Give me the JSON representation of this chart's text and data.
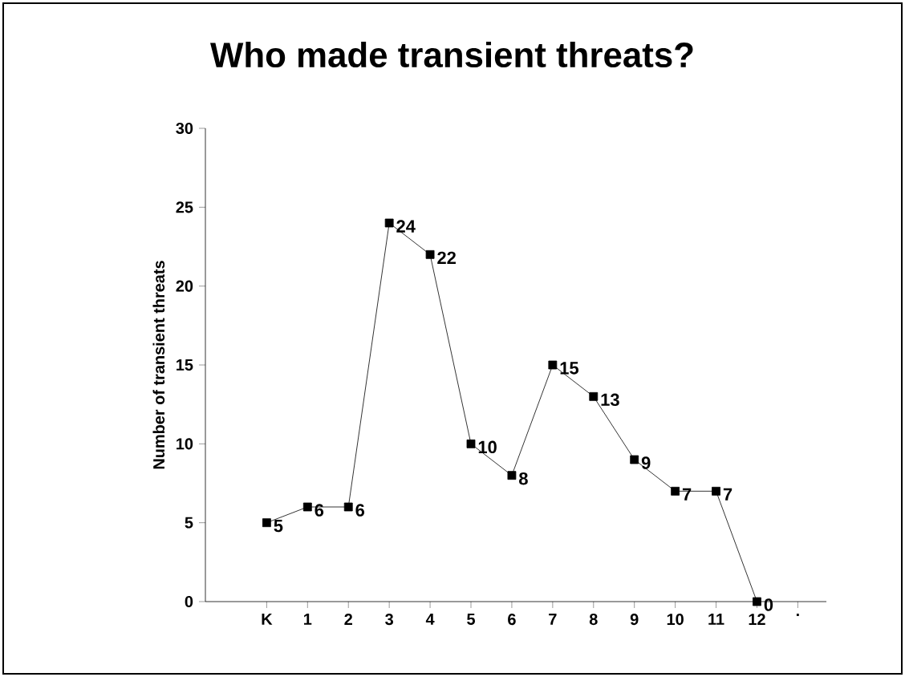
{
  "chart_data": {
    "type": "line",
    "title": "Who made transient threats?",
    "ylabel": "Number of transient threats",
    "categories": [
      "K",
      "1",
      "2",
      "3",
      "4",
      "5",
      "6",
      "7",
      "8",
      "9",
      "10",
      "11",
      "12",
      "."
    ],
    "values": [
      5,
      6,
      6,
      24,
      22,
      10,
      8,
      15,
      13,
      9,
      7,
      7,
      0,
      null
    ],
    "color": "#000000",
    "marker": "square",
    "line_style": "solid",
    "data_labels": true,
    "ylim": [
      0,
      30
    ],
    "yticks": [
      0,
      5,
      10,
      15,
      20,
      25,
      30
    ],
    "grid": false
  }
}
